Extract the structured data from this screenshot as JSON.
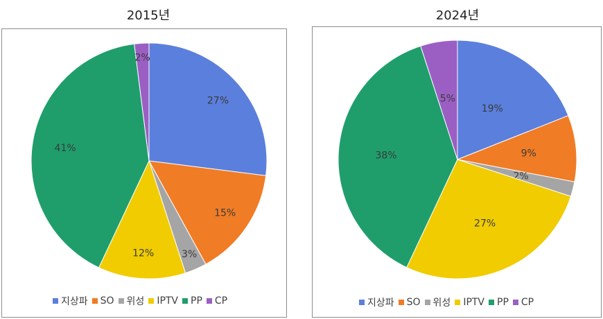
{
  "chart_data": [
    {
      "type": "pie",
      "title": "2015년",
      "categories": [
        "지상파",
        "SO",
        "위성",
        "IPTV",
        "PP",
        "CP"
      ],
      "values": [
        27,
        15,
        3,
        12,
        41,
        2
      ],
      "labels": [
        "27%",
        "15%",
        "3%",
        "12%",
        "41%",
        "2%"
      ],
      "legend": "bottom"
    },
    {
      "type": "pie",
      "title": "2024년",
      "categories": [
        "지상파",
        "SO",
        "위성",
        "IPTV",
        "PP",
        "CP"
      ],
      "values": [
        19,
        9,
        2,
        27,
        38,
        5
      ],
      "labels": [
        "19%",
        "9%",
        "2%",
        "27%",
        "38%",
        "5%"
      ],
      "legend": "bottom"
    }
  ],
  "colors": [
    "#5b7fdc",
    "#f07c25",
    "#a5a5a5",
    "#f0cc00",
    "#1f9e6c",
    "#9b5fc4"
  ]
}
